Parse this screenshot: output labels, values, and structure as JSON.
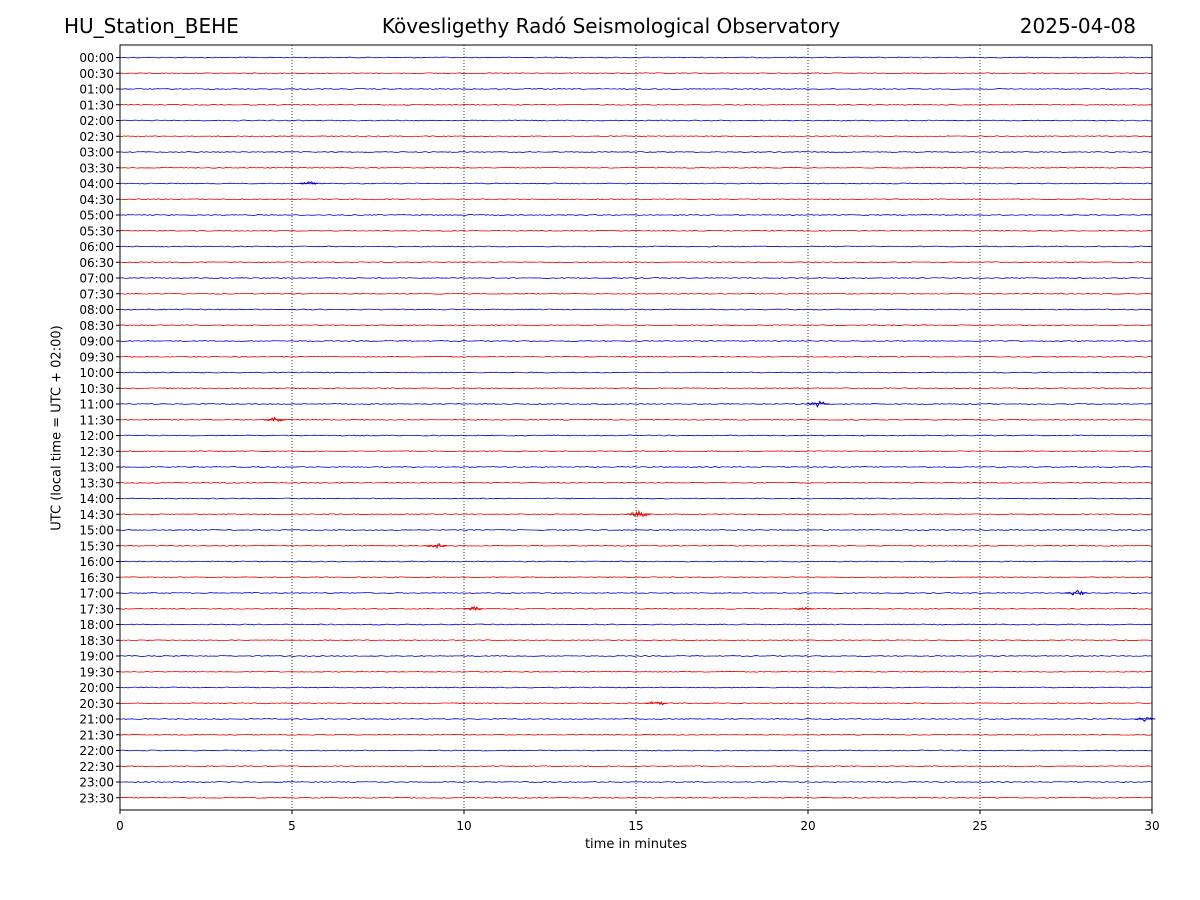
{
  "header": {
    "station": "HU_Station_BEHE",
    "title": "Kövesligethy Radó Seismological Observatory",
    "date": "2025-04-08"
  },
  "chart_data": {
    "type": "line",
    "title": "Kövesligethy Radó Seismological Observatory",
    "xlabel": "time in minutes",
    "ylabel": "UTC (local time = UTC + 02:00)",
    "xlim": [
      0,
      30
    ],
    "x_ticks": [
      "0",
      "5",
      "10",
      "15",
      "20",
      "25",
      "30"
    ],
    "grid_x": [
      5,
      10,
      15,
      20,
      25
    ],
    "colors": {
      "even_hour": "#0000cc",
      "half_hour": "#ee0000",
      "grid": "#000000"
    },
    "rows": [
      "00:00",
      "00:30",
      "01:00",
      "01:30",
      "02:00",
      "02:30",
      "03:00",
      "03:30",
      "04:00",
      "04:30",
      "05:00",
      "05:30",
      "06:00",
      "06:30",
      "07:00",
      "07:30",
      "08:00",
      "08:30",
      "09:00",
      "09:30",
      "10:00",
      "10:30",
      "11:00",
      "11:30",
      "12:00",
      "12:30",
      "13:00",
      "13:30",
      "14:00",
      "14:30",
      "15:00",
      "15:30",
      "16:00",
      "16:30",
      "17:00",
      "17:30",
      "18:00",
      "18:30",
      "19:00",
      "19:30",
      "20:00",
      "20:30",
      "21:00",
      "21:30",
      "22:00",
      "22:30",
      "23:00",
      "23:30"
    ],
    "events": [
      {
        "row": "04:00",
        "minute": 5.5,
        "amp": 0.3
      },
      {
        "row": "11:00",
        "minute": 20.3,
        "amp": 0.45
      },
      {
        "row": "11:30",
        "minute": 4.5,
        "amp": 0.4
      },
      {
        "row": "14:30",
        "minute": 15.1,
        "amp": 0.5
      },
      {
        "row": "15:30",
        "minute": 9.2,
        "amp": 0.35
      },
      {
        "row": "17:00",
        "minute": 27.8,
        "amp": 0.45
      },
      {
        "row": "17:30",
        "minute": 10.3,
        "amp": 0.3
      },
      {
        "row": "17:30",
        "minute": 19.9,
        "amp": 0.3
      },
      {
        "row": "20:30",
        "minute": 15.6,
        "amp": 0.4
      },
      {
        "row": "21:00",
        "minute": 29.8,
        "amp": 0.35
      }
    ]
  }
}
